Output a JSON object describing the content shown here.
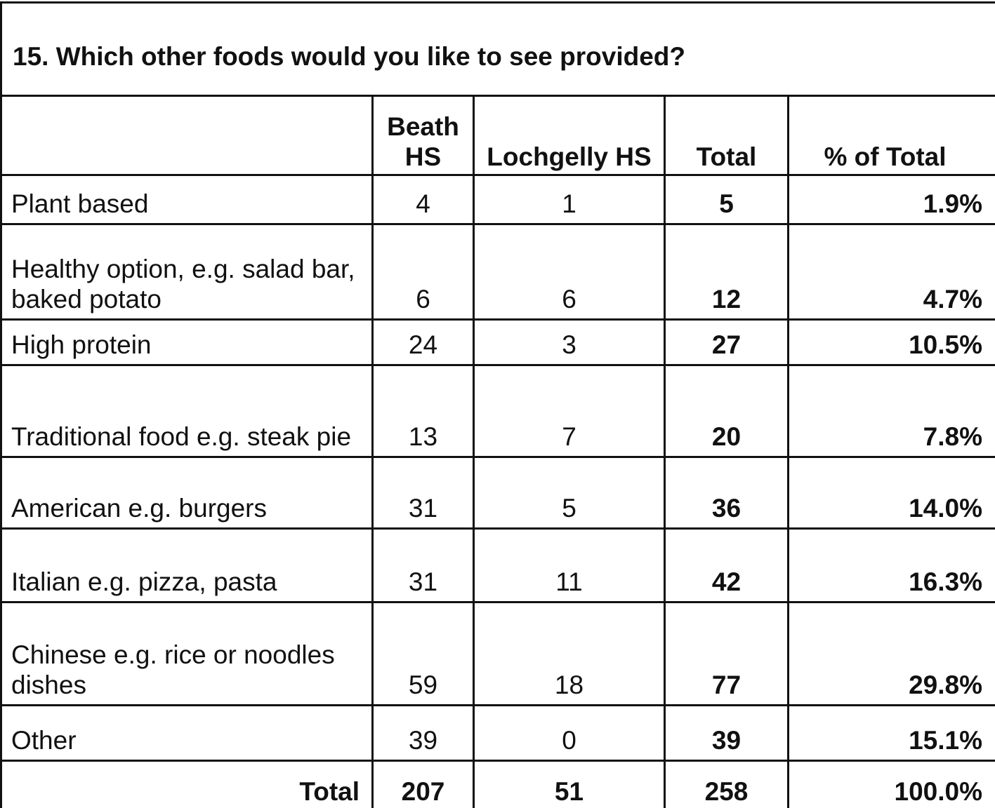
{
  "title": "15. Which other foods would you like to see provided?",
  "columns": {
    "beath": "Beath HS",
    "lochgelly": "Lochgelly HS",
    "total": "Total",
    "pct": "% of Total"
  },
  "rows": [
    {
      "label": "Plant based",
      "beath": "4",
      "lochgelly": "1",
      "total": "5",
      "pct": "1.9%"
    },
    {
      "label": "Healthy option, e.g. salad bar, baked potato",
      "beath": "6",
      "lochgelly": "6",
      "total": "12",
      "pct": "4.7%"
    },
    {
      "label": "High protein",
      "beath": "24",
      "lochgelly": "3",
      "total": "27",
      "pct": "10.5%"
    },
    {
      "label": "Traditional food e.g. steak pie",
      "beath": "13",
      "lochgelly": "7",
      "total": "20",
      "pct": "7.8%"
    },
    {
      "label": "American e.g. burgers",
      "beath": "31",
      "lochgelly": "5",
      "total": "36",
      "pct": "14.0%"
    },
    {
      "label": "Italian e.g. pizza, pasta",
      "beath": "31",
      "lochgelly": "11",
      "total": "42",
      "pct": "16.3%"
    },
    {
      "label": "Chinese e.g. rice or noodles dishes",
      "beath": "59",
      "lochgelly": "18",
      "total": "77",
      "pct": "29.8%"
    },
    {
      "label": "Other",
      "beath": "39",
      "lochgelly": "0",
      "total": "39",
      "pct": "15.1%"
    }
  ],
  "totals": {
    "label": "Total",
    "beath": "207",
    "lochgelly": "51",
    "total": "258",
    "pct": "100.0%"
  }
}
